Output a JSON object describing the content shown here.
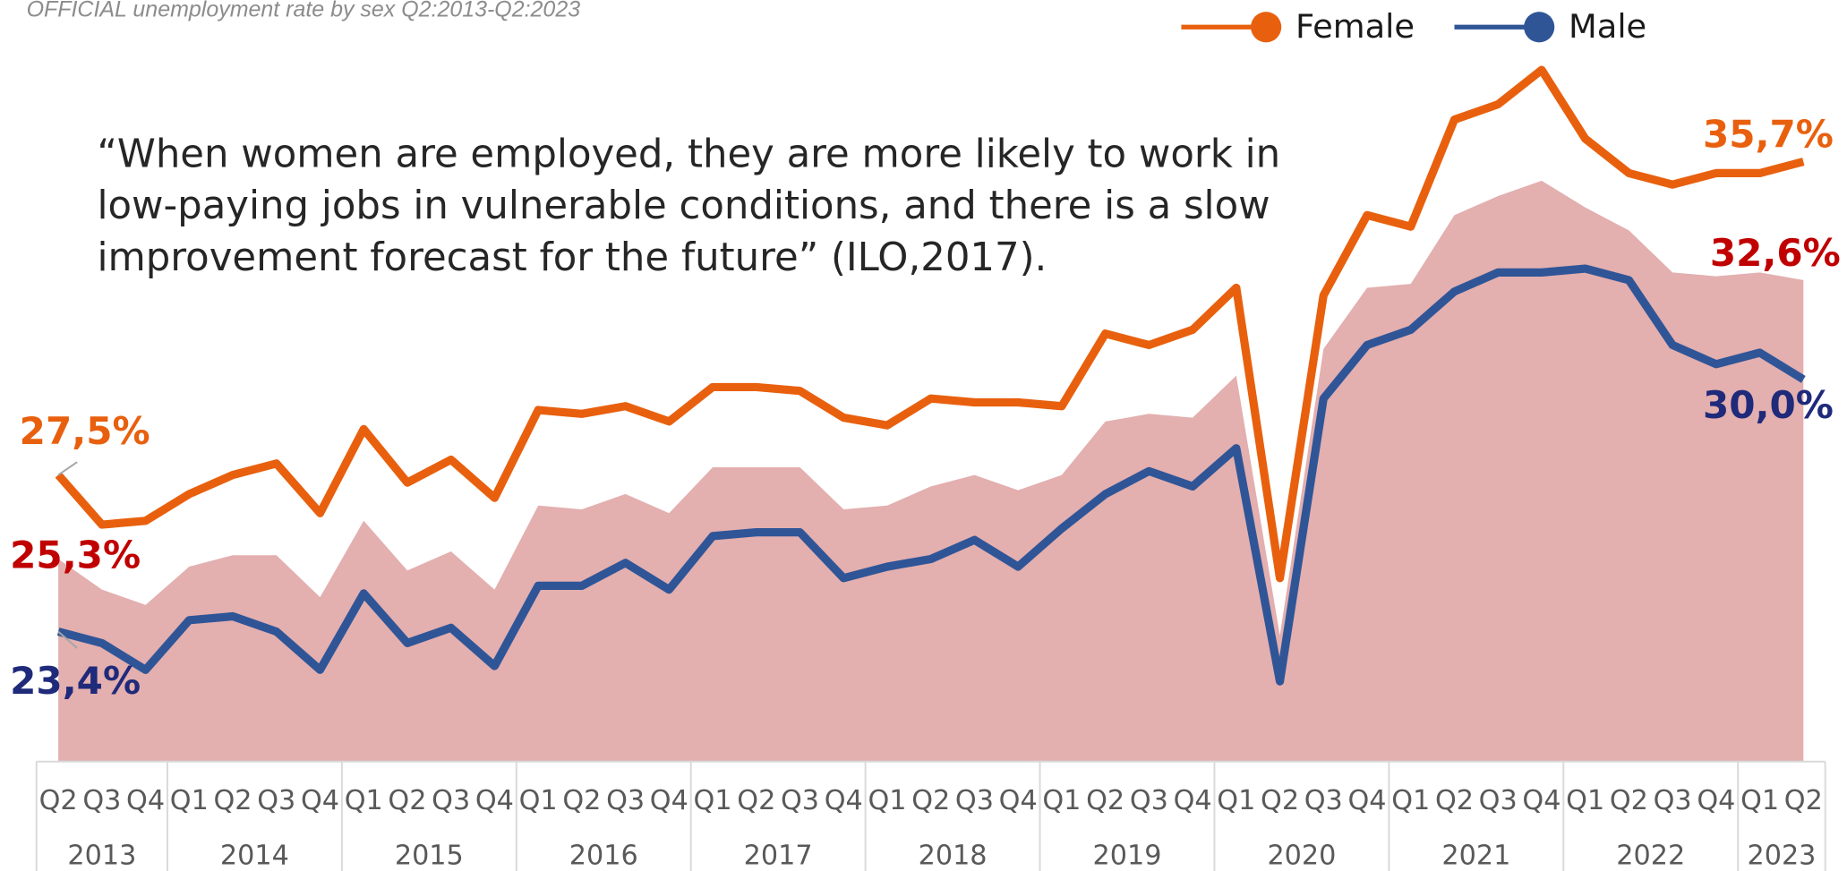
{
  "chart_data": {
    "type": "line",
    "title": "OFFICIAL unemployment rate by sex Q2:2013-Q2:2023",
    "quote": [
      " “When women are employed, they are more likely to work in",
      "low-paying jobs in vulnerable conditions, and there is a slow",
      "improvement forecast for the future” (ILO,2017)."
    ],
    "year_groups": [
      {
        "year": "2013",
        "quarters": [
          "Q2",
          "Q3",
          "Q4"
        ]
      },
      {
        "year": "2014",
        "quarters": [
          "Q1",
          "Q2",
          "Q3",
          "Q4"
        ]
      },
      {
        "year": "2015",
        "quarters": [
          "Q1",
          "Q2",
          "Q3",
          "Q4"
        ]
      },
      {
        "year": "2016",
        "quarters": [
          "Q1",
          "Q2",
          "Q3",
          "Q4"
        ]
      },
      {
        "year": "2017",
        "quarters": [
          "Q1",
          "Q2",
          "Q3",
          "Q4"
        ]
      },
      {
        "year": "2018",
        "quarters": [
          "Q1",
          "Q2",
          "Q3",
          "Q4"
        ]
      },
      {
        "year": "2019",
        "quarters": [
          "Q1",
          "Q2",
          "Q3",
          "Q4"
        ]
      },
      {
        "year": "2020",
        "quarters": [
          "Q1",
          "Q2",
          "Q3",
          "Q4"
        ]
      },
      {
        "year": "2021",
        "quarters": [
          "Q1",
          "Q2",
          "Q3",
          "Q4"
        ]
      },
      {
        "year": "2022",
        "quarters": [
          "Q1",
          "Q2",
          "Q3",
          "Q4"
        ]
      },
      {
        "year": "2023",
        "quarters": [
          "Q1",
          "Q2"
        ]
      }
    ],
    "ylim": [
      20,
      39.9
    ],
    "series": [
      {
        "type": "area",
        "color": "#e3afaf",
        "label_color": "#c00000",
        "values": [
          25.3,
          24.5,
          24.1,
          25.1,
          25.4,
          25.4,
          24.3,
          26.3,
          25.0,
          25.5,
          24.5,
          26.7,
          26.6,
          27.0,
          26.5,
          27.7,
          27.7,
          27.7,
          26.6,
          26.7,
          27.2,
          27.5,
          27.1,
          27.5,
          28.9,
          29.1,
          29.0,
          30.1,
          23.3,
          30.8,
          32.4,
          32.5,
          34.3,
          34.8,
          35.2,
          34.5,
          33.9,
          32.8,
          32.7,
          32.8,
          32.6
        ],
        "value_labels": [
          "25,3%",
          null,
          null,
          null,
          null,
          null,
          null,
          null,
          null,
          null,
          null,
          null,
          null,
          null,
          null,
          null,
          null,
          null,
          null,
          null,
          null,
          null,
          null,
          null,
          null,
          null,
          null,
          null,
          null,
          null,
          null,
          null,
          null,
          null,
          null,
          null,
          null,
          null,
          null,
          null,
          "32,6%"
        ]
      },
      {
        "name": "Female",
        "type": "line",
        "color": "#e8600e",
        "label_color": "#e8600e",
        "values": [
          27.5,
          26.2,
          26.3,
          27.0,
          27.5,
          27.8,
          26.5,
          28.7,
          27.3,
          27.9,
          26.9,
          29.2,
          29.1,
          29.3,
          28.9,
          29.8,
          29.8,
          29.7,
          29.0,
          28.8,
          29.5,
          29.4,
          29.4,
          29.3,
          31.2,
          30.9,
          31.3,
          32.4,
          24.8,
          32.2,
          34.3,
          34.0,
          36.8,
          37.2,
          38.1,
          36.3,
          35.4,
          35.1,
          35.4,
          35.4,
          35.7
        ],
        "value_labels": [
          "27,5%",
          null,
          null,
          null,
          null,
          null,
          null,
          null,
          null,
          null,
          null,
          null,
          null,
          null,
          null,
          null,
          null,
          null,
          null,
          null,
          null,
          null,
          null,
          null,
          null,
          null,
          null,
          null,
          null,
          null,
          null,
          null,
          null,
          null,
          null,
          null,
          null,
          null,
          null,
          null,
          "35,7%"
        ]
      },
      {
        "name": "Male",
        "type": "line",
        "color": "#2f5597",
        "label_color": "#1f2a7a",
        "values": [
          23.4,
          23.1,
          22.4,
          23.7,
          23.8,
          23.4,
          22.4,
          24.4,
          23.1,
          23.5,
          22.5,
          24.6,
          24.6,
          25.2,
          24.5,
          25.9,
          26.0,
          26.0,
          24.8,
          25.1,
          25.3,
          25.8,
          25.1,
          26.1,
          27.0,
          27.6,
          27.2,
          28.2,
          22.1,
          29.5,
          30.9,
          31.3,
          32.3,
          32.8,
          32.8,
          32.9,
          32.6,
          30.9,
          30.4,
          30.7,
          30.0
        ],
        "value_labels": [
          "23,4%",
          null,
          null,
          null,
          null,
          null,
          null,
          null,
          null,
          null,
          null,
          null,
          null,
          null,
          null,
          null,
          null,
          null,
          null,
          null,
          null,
          null,
          null,
          null,
          null,
          null,
          null,
          null,
          null,
          null,
          null,
          null,
          null,
          null,
          null,
          null,
          null,
          null,
          null,
          null,
          "30,0%"
        ]
      }
    ]
  }
}
